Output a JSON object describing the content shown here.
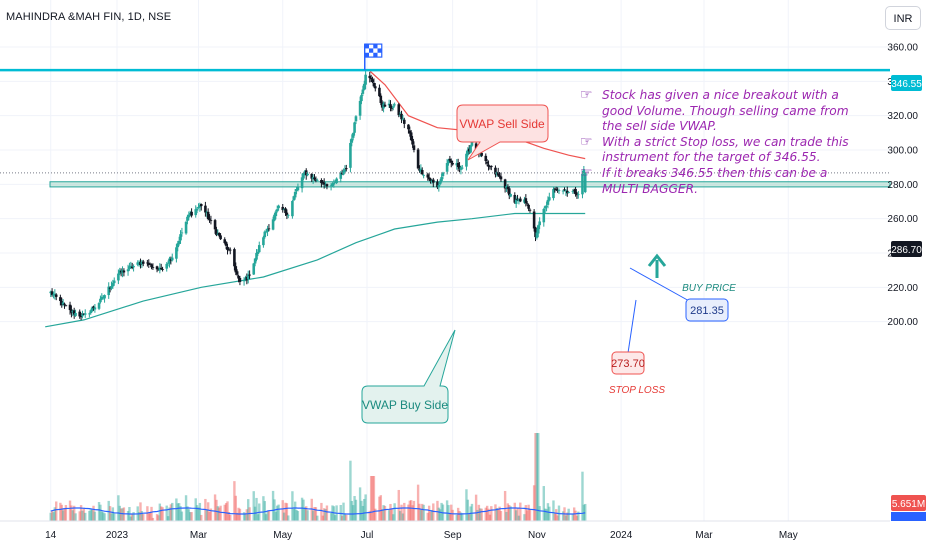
{
  "header": {
    "symbol_line": "MAHINDRA &MAH FIN, 1D, NSE",
    "currency_button": "INR"
  },
  "notes": [
    "Stock has given a nice breakout with a good Volume. Though selling came from the sell side VWAP.",
    "With a strict Stop loss, we can trade this instrument for the target of 346.55.",
    "If it breaks 346.55 then this can be a MULTI BAGGER."
  ],
  "annotations": {
    "vwap_sell": "VWAP Sell Side",
    "vwap_buy": "VWAP Buy Side",
    "buy_price_label": "BUY PRICE",
    "buy_price_value": "281.35",
    "stop_loss_value": "273.70",
    "stop_loss_label": "STOP LOSS"
  },
  "price_tags": {
    "target": "346.55",
    "last": "286.70",
    "volume": "5.651M"
  },
  "colors": {
    "candle_up": "#26a69a",
    "candle_down": "#131722",
    "resistance_line": "#00bcd4",
    "vwap_sell": "#ef5350",
    "vwap_buy": "#26a69a",
    "support_zone": "#a5d6c9",
    "note_text": "#9c27b0",
    "volume_ma": "#2962ff"
  },
  "chart_data": {
    "type": "candlestick",
    "title": "MAHINDRA &MAH FIN, 1D, NSE",
    "y_axis": {
      "ticks": [
        200,
        220,
        240,
        260,
        280,
        300,
        320,
        340,
        360
      ],
      "tick_labels": [
        "200.00",
        "220.00",
        "240.00",
        "260.00",
        "280.00",
        "300.00",
        "320.00",
        "340.00",
        "360.00"
      ],
      "ylim": [
        196,
        367
      ],
      "position": "right"
    },
    "x_axis": {
      "tick_labels": [
        "14",
        "2023",
        "Mar",
        "May",
        "Jul",
        "Sep",
        "Nov",
        "2024",
        "Mar",
        "May"
      ]
    },
    "close_path": [
      [
        "2022-11-14",
        217
      ],
      [
        "2022-11-28",
        206
      ],
      [
        "2022-12-08",
        203
      ],
      [
        "2022-12-20",
        212
      ],
      [
        "2023-01-02",
        228
      ],
      [
        "2023-01-20",
        235
      ],
      [
        "2023-02-01",
        230
      ],
      [
        "2023-02-10",
        238
      ],
      [
        "2023-02-22",
        262
      ],
      [
        "2023-03-03",
        268
      ],
      [
        "2023-03-14",
        252
      ],
      [
        "2023-03-24",
        240
      ],
      [
        "2023-03-31",
        222
      ],
      [
        "2023-04-06",
        226
      ],
      [
        "2023-04-17",
        250
      ],
      [
        "2023-04-28",
        266
      ],
      [
        "2023-05-05",
        263
      ],
      [
        "2023-05-10",
        275
      ],
      [
        "2023-05-17",
        287
      ],
      [
        "2023-05-26",
        282
      ],
      [
        "2023-06-06",
        279
      ],
      [
        "2023-06-16",
        290
      ],
      [
        "2023-06-23",
        320
      ],
      [
        "2023-06-30",
        343
      ],
      [
        "2023-07-05",
        340
      ],
      [
        "2023-07-12",
        326
      ],
      [
        "2023-07-21",
        325
      ],
      [
        "2023-07-31",
        312
      ],
      [
        "2023-08-07",
        290
      ],
      [
        "2023-08-21",
        278
      ],
      [
        "2023-08-28",
        293
      ],
      [
        "2023-09-08",
        290
      ],
      [
        "2023-09-15",
        305
      ],
      [
        "2023-09-25",
        292
      ],
      [
        "2023-10-05",
        284
      ],
      [
        "2023-10-16",
        270
      ],
      [
        "2023-10-25",
        270
      ],
      [
        "2023-10-31",
        250
      ],
      [
        "2023-11-06",
        265
      ],
      [
        "2023-11-14",
        278
      ],
      [
        "2023-11-24",
        276
      ],
      [
        "2023-12-01",
        275
      ],
      [
        "2023-12-06",
        292
      ]
    ],
    "horizontal_lines": [
      {
        "label": "346.55",
        "value": 346.55
      },
      {
        "label": "286.70",
        "value": 286.7
      }
    ],
    "support_zone": [
      278.5,
      281.5
    ],
    "vwap_sell_side": [
      [
        "2023-07-03",
        346
      ],
      [
        "2023-07-14",
        338
      ],
      [
        "2023-07-31",
        320
      ],
      [
        "2023-08-21",
        313
      ],
      [
        "2023-09-15",
        311
      ],
      [
        "2023-10-16",
        307
      ],
      [
        "2023-11-06",
        301
      ],
      [
        "2023-11-24",
        297
      ],
      [
        "2023-12-06",
        295
      ]
    ],
    "vwap_buy_side": [
      [
        "2022-11-10",
        197
      ],
      [
        "2022-12-08",
        201
      ],
      [
        "2023-01-20",
        212
      ],
      [
        "2023-03-03",
        220
      ],
      [
        "2023-04-17",
        226
      ],
      [
        "2023-05-26",
        236
      ],
      [
        "2023-06-23",
        246
      ],
      [
        "2023-07-21",
        254
      ],
      [
        "2023-08-21",
        258
      ],
      [
        "2023-09-15",
        260
      ],
      [
        "2023-10-16",
        263
      ],
      [
        "2023-11-06",
        263
      ],
      [
        "2023-12-06",
        263
      ]
    ],
    "volume": {
      "last_label": "5.651M"
    },
    "legend_position": "none"
  }
}
